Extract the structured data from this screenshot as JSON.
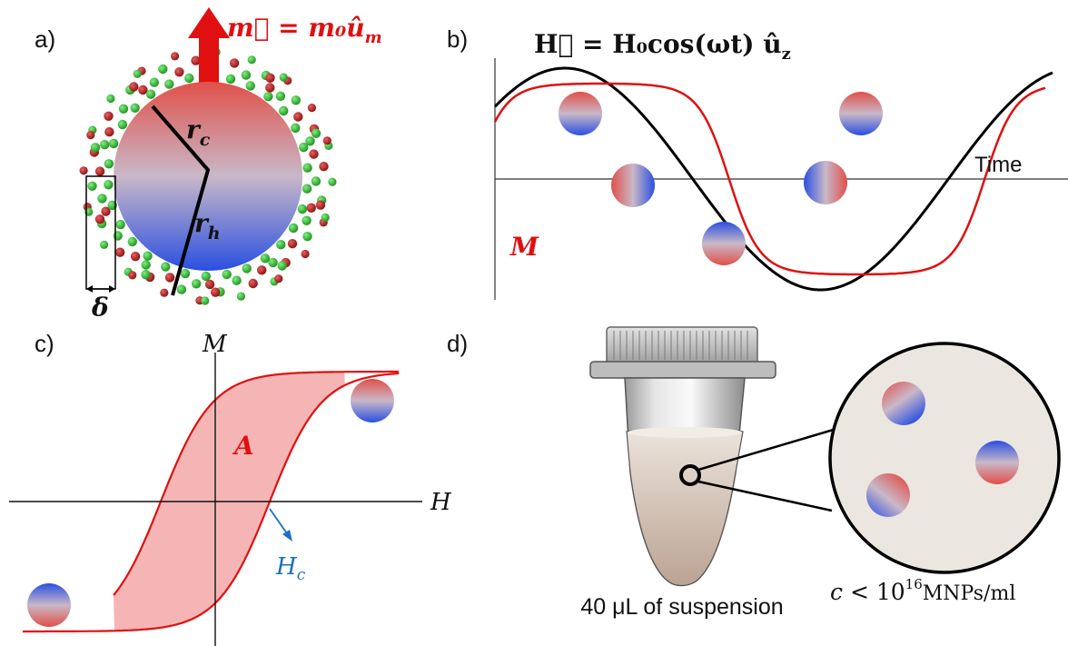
{
  "panels": {
    "a": {
      "label": "a)",
      "moment_equation": "m⃗ = m₀û",
      "moment_subscript": "m",
      "core_radius_label": "r",
      "core_radius_sub": "c",
      "hydro_radius_label": "r",
      "hydro_radius_sub": "h",
      "shell_thickness_label": "δ"
    },
    "b": {
      "label": "b)",
      "field_equation": "H⃗ = H₀cos(ωt) û",
      "field_subscript": "z",
      "time_axis_label": "Time",
      "magnetization_label": "M"
    },
    "c": {
      "label": "c)",
      "y_axis_label": "M",
      "x_axis_label": "H",
      "area_label": "A",
      "coercivity_label": "H",
      "coercivity_sub": "c"
    },
    "d": {
      "label": "d)",
      "tube_caption": "40 μL of suspension",
      "concentration_c": "c",
      "concentration_rest": " < 10",
      "concentration_exp": "16",
      "concentration_unit": "MNPs/ml"
    }
  },
  "colors": {
    "accent_red": "#e01010",
    "particle_top": "#e0504a",
    "particle_bottom": "#2a4fe0",
    "hysteresis_fill": "#f6b5b5",
    "coercivity_arrow": "#1a6fc0",
    "ligand_green": "#2fb52f",
    "ligand_red": "#b81818"
  },
  "icons": {
    "nanoparticle": "gradient-sphere-icon",
    "tube": "eppendorf-tube-icon"
  }
}
